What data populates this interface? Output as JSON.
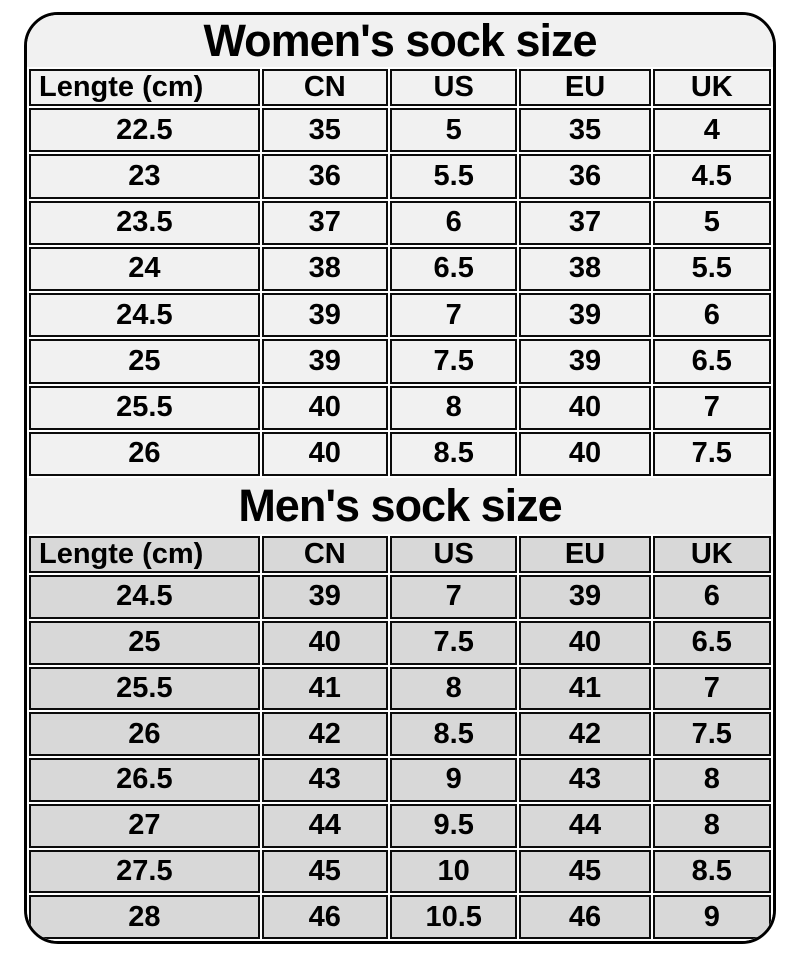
{
  "colors": {
    "light_section_bg": "#f1f1f1",
    "dark_section_bg": "#d8d8d8",
    "border": "#000000",
    "text": "#000000"
  },
  "chart_data": [
    {
      "type": "table",
      "title": "Women's sock size",
      "columns": [
        "Lengte (cm)",
        "CN",
        "US",
        "EU",
        "UK"
      ],
      "rows": [
        [
          "22.5",
          "35",
          "5",
          "35",
          "4"
        ],
        [
          "23",
          "36",
          "5.5",
          "36",
          "4.5"
        ],
        [
          "23.5",
          "37",
          "6",
          "37",
          "5"
        ],
        [
          "24",
          "38",
          "6.5",
          "38",
          "5.5"
        ],
        [
          "24.5",
          "39",
          "7",
          "39",
          "6"
        ],
        [
          "25",
          "39",
          "7.5",
          "39",
          "6.5"
        ],
        [
          "25.5",
          "40",
          "8",
          "40",
          "7"
        ],
        [
          "26",
          "40",
          "8.5",
          "40",
          "7.5"
        ]
      ]
    },
    {
      "type": "table",
      "title": "Men's sock size",
      "columns": [
        "Lengte (cm)",
        "CN",
        "US",
        "EU",
        "UK"
      ],
      "rows": [
        [
          "24.5",
          "39",
          "7",
          "39",
          "6"
        ],
        [
          "25",
          "40",
          "7.5",
          "40",
          "6.5"
        ],
        [
          "25.5",
          "41",
          "8",
          "41",
          "7"
        ],
        [
          "26",
          "42",
          "8.5",
          "42",
          "7.5"
        ],
        [
          "26.5",
          "43",
          "9",
          "43",
          "8"
        ],
        [
          "27",
          "44",
          "9.5",
          "44",
          "8"
        ],
        [
          "27.5",
          "45",
          "10",
          "45",
          "8.5"
        ],
        [
          "28",
          "46",
          "10.5",
          "46",
          "9"
        ]
      ]
    }
  ]
}
